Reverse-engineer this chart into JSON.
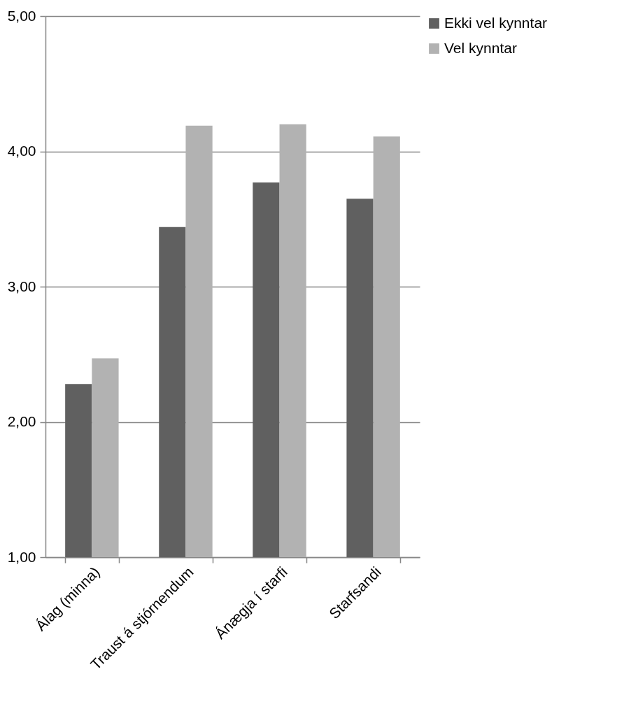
{
  "chart_data": {
    "type": "bar",
    "categories": [
      "Álag (minna)",
      "Traust á stjórnendum",
      "Ánægja í starfi",
      "Starfsandi"
    ],
    "series": [
      {
        "name": "Ekki vel kynntar",
        "color": "#606060",
        "values": [
          2.28,
          3.44,
          3.77,
          3.65
        ]
      },
      {
        "name": "Vel kynntar",
        "color": "#b2b2b2",
        "values": [
          2.47,
          4.19,
          4.2,
          4.11
        ]
      }
    ],
    "ylim": [
      1,
      5
    ],
    "yticks": [
      {
        "value": 1,
        "label": "1,00"
      },
      {
        "value": 2,
        "label": "2,00"
      },
      {
        "value": 3,
        "label": "3,00"
      },
      {
        "value": 4,
        "label": "4,00"
      },
      {
        "value": 5,
        "label": "5,00"
      }
    ],
    "grid": "y",
    "legend": "right"
  }
}
